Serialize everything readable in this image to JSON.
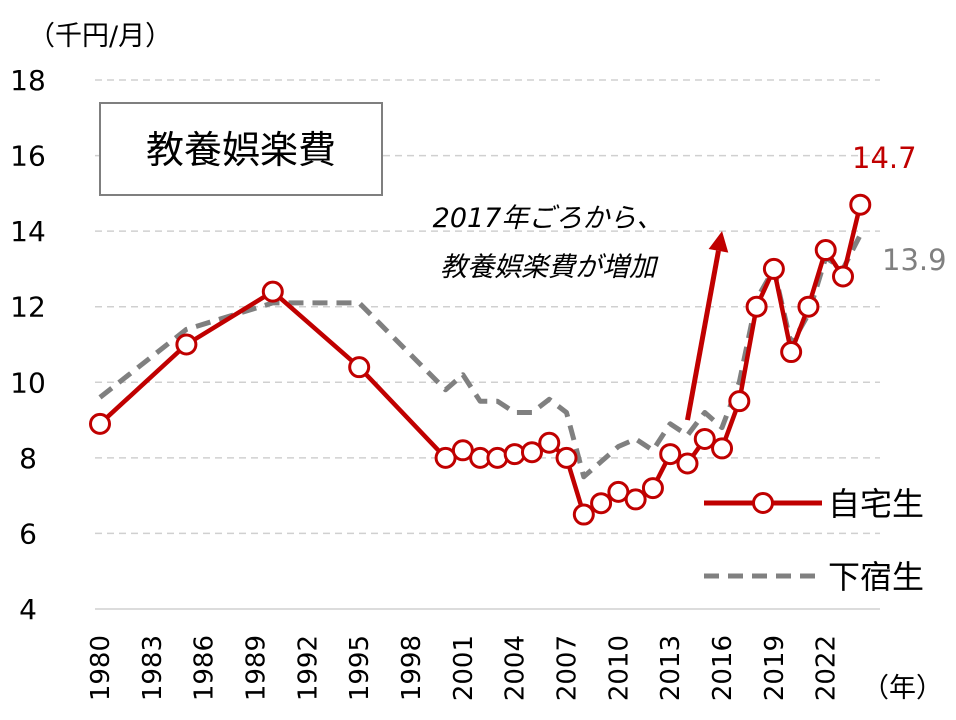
{
  "chart_data": {
    "type": "line",
    "title": "教養娯楽費",
    "y_unit": "（千円/月）",
    "x_unit": "（年）",
    "ylim": [
      4,
      18
    ],
    "y_ticks": [
      "4",
      "6",
      "8",
      "10",
      "12",
      "14",
      "16",
      "18"
    ],
    "x_tick_labels": [
      "1980",
      "1983",
      "1986",
      "1989",
      "1992",
      "1995",
      "1998",
      "2001",
      "2004",
      "2007",
      "2010",
      "2013",
      "2016",
      "2019",
      "2022"
    ],
    "grid": true,
    "legend_position": "right",
    "series": [
      {
        "name": "自宅生",
        "color": "#c00000",
        "style": "solid-circle-markers",
        "end_label": "14.7",
        "points": [
          {
            "x": 1980,
            "y": 8.9
          },
          {
            "x": 1985,
            "y": 11.0
          },
          {
            "x": 1990,
            "y": 12.4
          },
          {
            "x": 1995,
            "y": 10.4
          },
          {
            "x": 2000,
            "y": 8.0
          },
          {
            "x": 2001,
            "y": 8.2
          },
          {
            "x": 2002,
            "y": 8.0
          },
          {
            "x": 2003,
            "y": 8.0
          },
          {
            "x": 2004,
            "y": 8.1
          },
          {
            "x": 2005,
            "y": 8.15
          },
          {
            "x": 2006,
            "y": 8.4
          },
          {
            "x": 2007,
            "y": 8.0
          },
          {
            "x": 2008,
            "y": 6.5
          },
          {
            "x": 2009,
            "y": 6.8
          },
          {
            "x": 2010,
            "y": 7.1
          },
          {
            "x": 2011,
            "y": 6.9
          },
          {
            "x": 2012,
            "y": 7.2
          },
          {
            "x": 2013,
            "y": 8.1
          },
          {
            "x": 2014,
            "y": 7.85
          },
          {
            "x": 2015,
            "y": 8.5
          },
          {
            "x": 2016,
            "y": 8.25
          },
          {
            "x": 2017,
            "y": 9.5
          },
          {
            "x": 2018,
            "y": 12.0
          },
          {
            "x": 2019,
            "y": 13.0
          },
          {
            "x": 2020,
            "y": 10.8
          },
          {
            "x": 2021,
            "y": 12.0
          },
          {
            "x": 2022,
            "y": 13.5
          },
          {
            "x": 2023,
            "y": 12.8
          },
          {
            "x": 2024,
            "y": 14.7
          }
        ]
      },
      {
        "name": "下宿生",
        "color": "#808080",
        "style": "dashed",
        "end_label": "13.9",
        "points": [
          {
            "x": 1980,
            "y": 9.6
          },
          {
            "x": 1985,
            "y": 11.4
          },
          {
            "x": 1990,
            "y": 12.1
          },
          {
            "x": 1995,
            "y": 12.1
          },
          {
            "x": 2000,
            "y": 9.8
          },
          {
            "x": 2001,
            "y": 10.2
          },
          {
            "x": 2002,
            "y": 9.5
          },
          {
            "x": 2003,
            "y": 9.5
          },
          {
            "x": 2004,
            "y": 9.2
          },
          {
            "x": 2005,
            "y": 9.2
          },
          {
            "x": 2006,
            "y": 9.55
          },
          {
            "x": 2007,
            "y": 9.2
          },
          {
            "x": 2008,
            "y": 7.5
          },
          {
            "x": 2009,
            "y": 7.9
          },
          {
            "x": 2010,
            "y": 8.3
          },
          {
            "x": 2011,
            "y": 8.5
          },
          {
            "x": 2012,
            "y": 8.2
          },
          {
            "x": 2013,
            "y": 8.9
          },
          {
            "x": 2014,
            "y": 8.6
          },
          {
            "x": 2015,
            "y": 9.2
          },
          {
            "x": 2016,
            "y": 8.8
          },
          {
            "x": 2017,
            "y": 10.0
          },
          {
            "x": 2018,
            "y": 12.2
          },
          {
            "x": 2019,
            "y": 13.0
          },
          {
            "x": 2020,
            "y": 11.0
          },
          {
            "x": 2021,
            "y": 11.8
          },
          {
            "x": 2022,
            "y": 13.3
          },
          {
            "x": 2023,
            "y": 13.0
          },
          {
            "x": 2024,
            "y": 13.9
          }
        ]
      }
    ],
    "annotation": {
      "lines": [
        "2017年ごろから、",
        "教養娯楽費が増加"
      ],
      "arrow": {
        "from": {
          "x": 2014,
          "y": 9.0
        },
        "to": {
          "x": 2016,
          "y": 14.0
        },
        "color": "#c00000"
      }
    }
  }
}
